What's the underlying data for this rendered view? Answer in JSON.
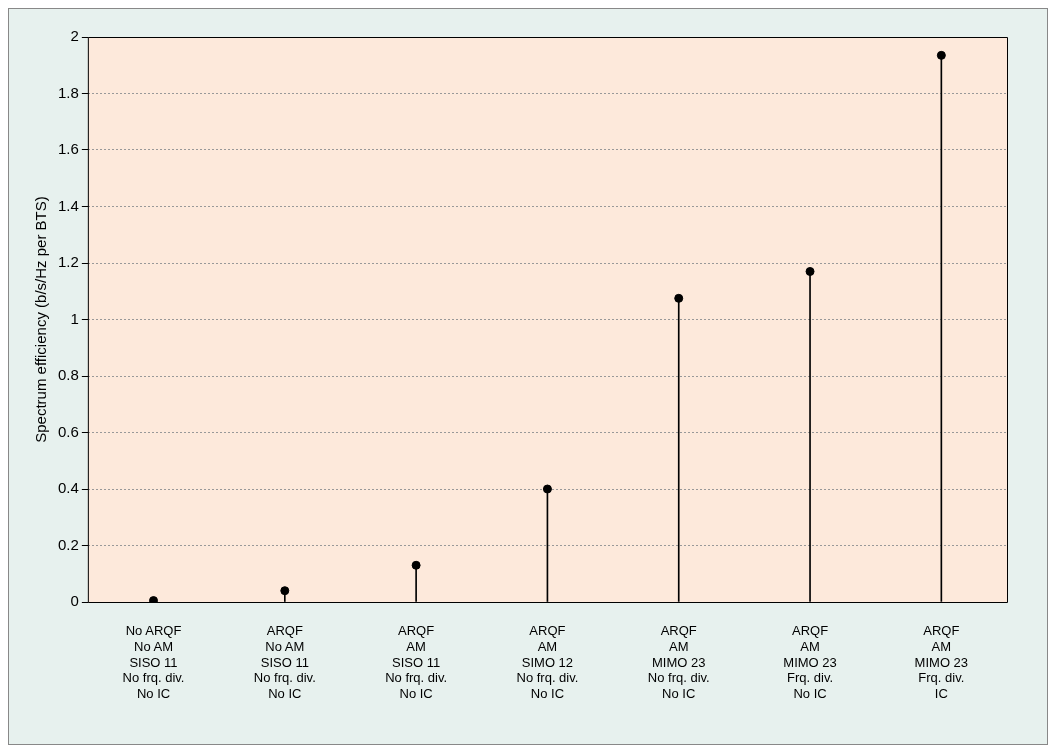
{
  "chart_data": {
    "type": "lollipop",
    "ylabel": "Spectrum efficiency (b/s/Hz per BTS)",
    "categories": [
      "No ARQF\nNo AM\nSISO 11\nNo frq. div.\nNo IC",
      "ARQF\nNo AM\nSISO 11\nNo frq. div.\nNo IC",
      "ARQF\nAM\nSISO 11\nNo frq. div.\nNo IC",
      "ARQF\nAM\nSIMO 12\nNo frq. div.\nNo IC",
      "ARQF\nAM\nMIMO 23\nNo frq. div.\nNo IC",
      "ARQF\nAM\nMIMO 23\nFrq. div.\nNo IC",
      "ARQF\nAM\nMIMO 23\nFrq. div.\nIC"
    ],
    "values": [
      0.005,
      0.04,
      0.13,
      0.4,
      1.075,
      1.17,
      1.935
    ],
    "color": "#000000",
    "ylim": [
      0,
      2
    ],
    "yticks": [
      0,
      0.2,
      0.4,
      0.6,
      0.8,
      1,
      1.2,
      1.4,
      1.6,
      1.8,
      2
    ],
    "grid": "y",
    "marker": "circle"
  }
}
